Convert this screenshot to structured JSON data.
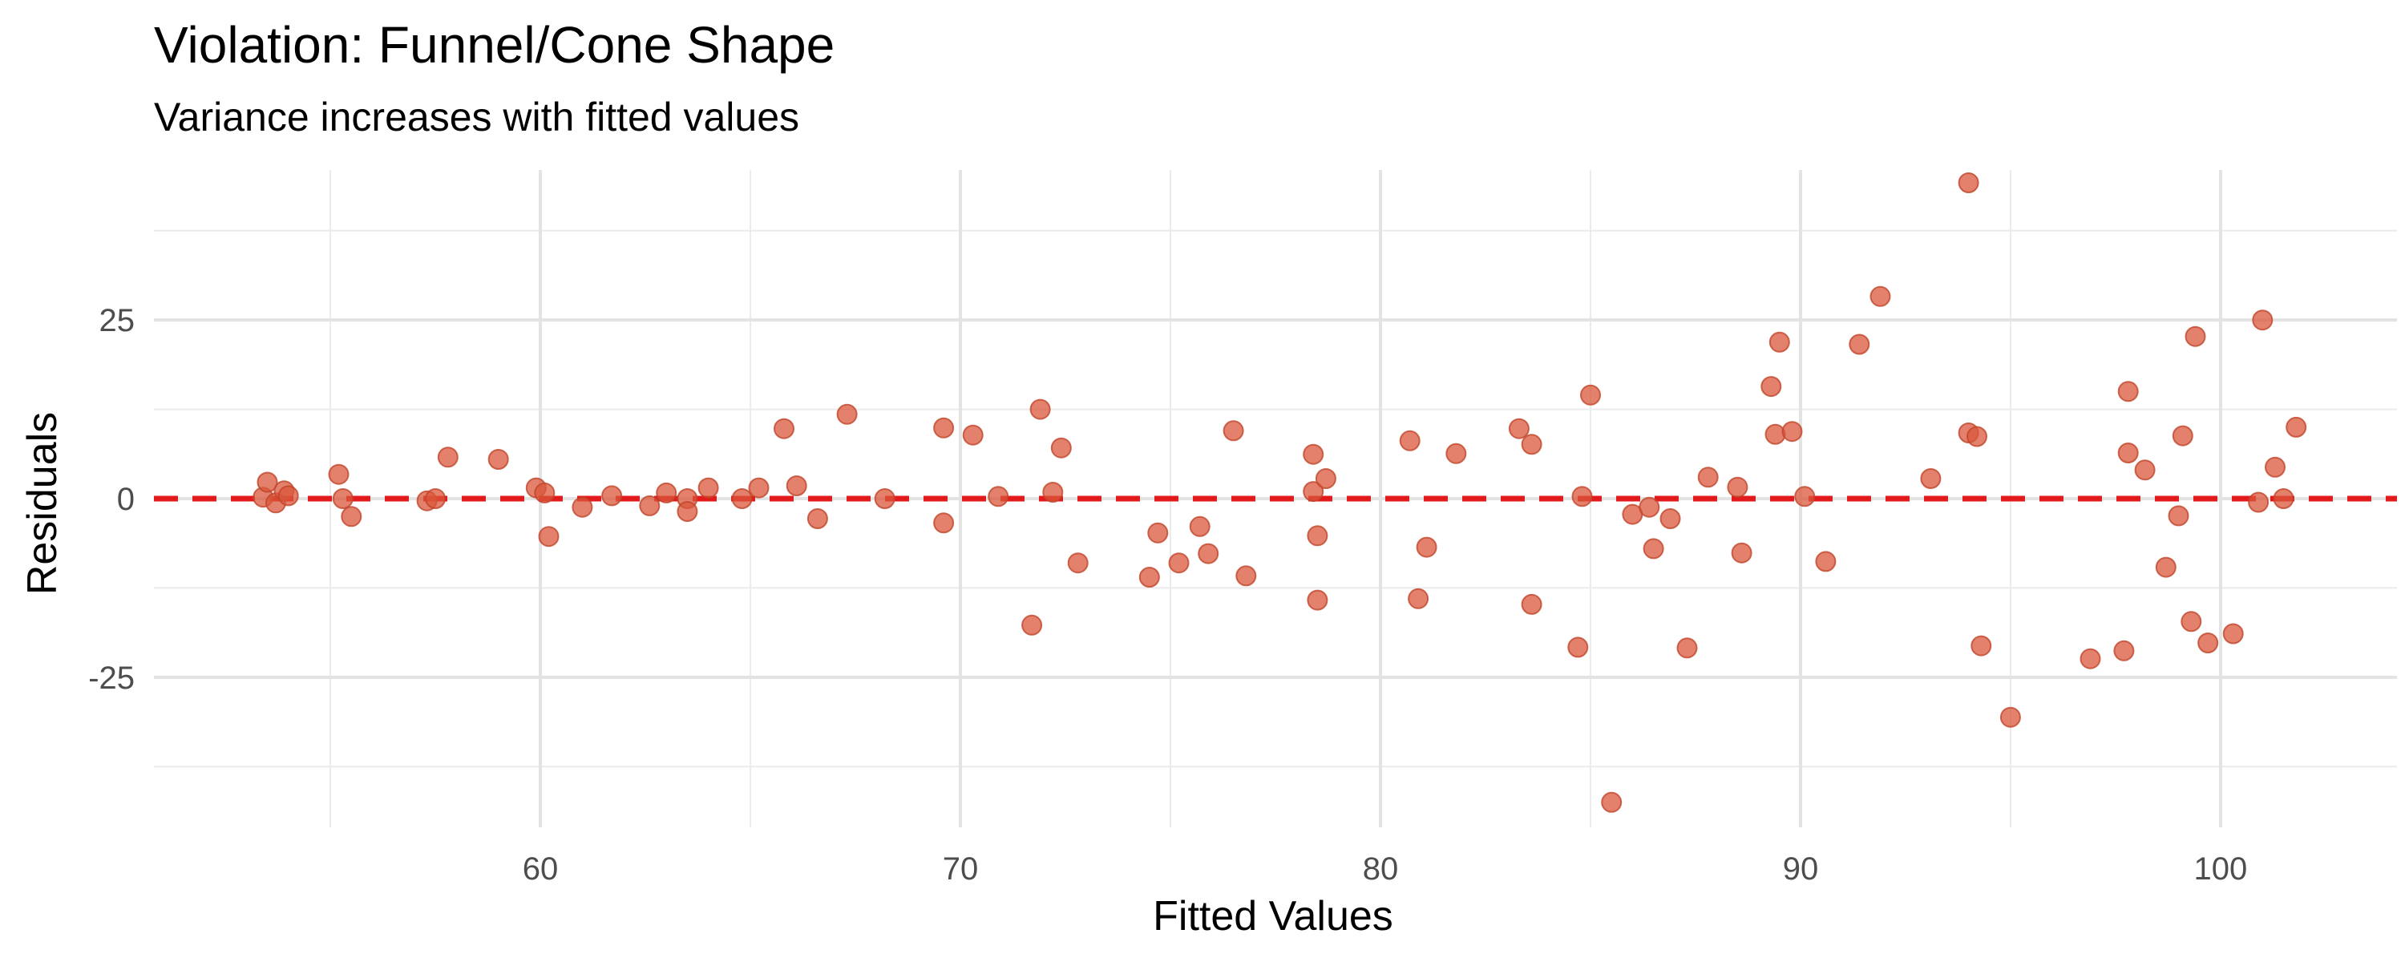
{
  "chart_data": {
    "type": "scatter",
    "title": "Violation: Funnel/Cone Shape",
    "subtitle": "Variance increases with fitted values",
    "xlabel": "Fitted Values",
    "ylabel": "Residuals",
    "xlim": [
      50.8,
      104.2
    ],
    "ylim": [
      -46,
      46
    ],
    "x_ticks": [
      60,
      70,
      80,
      90,
      100
    ],
    "x_minor_ticks": [
      55,
      65,
      75,
      85,
      95
    ],
    "y_ticks": [
      -25,
      0,
      25
    ],
    "y_minor_ticks": [
      -37.5,
      -12.5,
      12.5,
      37.5
    ],
    "grid": true,
    "reference_line": {
      "y": 0,
      "style": "dashed",
      "color": "#e31a1c"
    },
    "point_color": "#d9573b",
    "points": [
      {
        "x": 53.4,
        "y": 0.2
      },
      {
        "x": 53.5,
        "y": 2.3
      },
      {
        "x": 53.7,
        "y": -0.6
      },
      {
        "x": 53.9,
        "y": 1.1
      },
      {
        "x": 54.0,
        "y": 0.4
      },
      {
        "x": 55.2,
        "y": 3.4
      },
      {
        "x": 55.3,
        "y": 0.0
      },
      {
        "x": 55.5,
        "y": -2.5
      },
      {
        "x": 57.3,
        "y": -0.3
      },
      {
        "x": 57.5,
        "y": 0.0
      },
      {
        "x": 57.8,
        "y": 5.8
      },
      {
        "x": 59.0,
        "y": 5.5
      },
      {
        "x": 59.9,
        "y": 1.5
      },
      {
        "x": 60.1,
        "y": 0.8
      },
      {
        "x": 60.2,
        "y": -5.3
      },
      {
        "x": 61.0,
        "y": -1.2
      },
      {
        "x": 61.7,
        "y": 0.4
      },
      {
        "x": 62.6,
        "y": -1.0
      },
      {
        "x": 63.0,
        "y": 0.8
      },
      {
        "x": 63.5,
        "y": 0.0
      },
      {
        "x": 63.5,
        "y": -1.8
      },
      {
        "x": 64.0,
        "y": 1.5
      },
      {
        "x": 64.8,
        "y": 0.0
      },
      {
        "x": 65.2,
        "y": 1.5
      },
      {
        "x": 65.8,
        "y": 9.8
      },
      {
        "x": 66.1,
        "y": 1.8
      },
      {
        "x": 66.6,
        "y": -2.8
      },
      {
        "x": 67.3,
        "y": 11.8
      },
      {
        "x": 68.2,
        "y": 0.0
      },
      {
        "x": 69.6,
        "y": 9.9
      },
      {
        "x": 69.6,
        "y": -3.4
      },
      {
        "x": 70.3,
        "y": 8.9
      },
      {
        "x": 70.9,
        "y": 0.3
      },
      {
        "x": 71.7,
        "y": -17.7
      },
      {
        "x": 71.9,
        "y": 12.5
      },
      {
        "x": 72.2,
        "y": 0.9
      },
      {
        "x": 72.4,
        "y": 7.1
      },
      {
        "x": 72.8,
        "y": -9.0
      },
      {
        "x": 74.5,
        "y": -11.0
      },
      {
        "x": 74.7,
        "y": -4.8
      },
      {
        "x": 75.2,
        "y": -9.0
      },
      {
        "x": 75.7,
        "y": -3.9
      },
      {
        "x": 75.9,
        "y": -7.7
      },
      {
        "x": 76.5,
        "y": 9.5
      },
      {
        "x": 76.8,
        "y": -10.8
      },
      {
        "x": 78.4,
        "y": 6.2
      },
      {
        "x": 78.4,
        "y": 1.0
      },
      {
        "x": 78.5,
        "y": -5.2
      },
      {
        "x": 78.5,
        "y": -14.2
      },
      {
        "x": 78.7,
        "y": 2.8
      },
      {
        "x": 80.7,
        "y": 8.1
      },
      {
        "x": 80.9,
        "y": -14.0
      },
      {
        "x": 81.1,
        "y": -6.8
      },
      {
        "x": 81.8,
        "y": 6.3
      },
      {
        "x": 83.3,
        "y": 9.8
      },
      {
        "x": 83.6,
        "y": 7.6
      },
      {
        "x": 83.6,
        "y": -14.8
      },
      {
        "x": 84.7,
        "y": -20.8
      },
      {
        "x": 84.8,
        "y": 0.3
      },
      {
        "x": 85.0,
        "y": 14.5
      },
      {
        "x": 85.5,
        "y": -42.5
      },
      {
        "x": 86.0,
        "y": -2.2
      },
      {
        "x": 86.4,
        "y": -1.2
      },
      {
        "x": 86.5,
        "y": -7.0
      },
      {
        "x": 86.9,
        "y": -2.8
      },
      {
        "x": 87.3,
        "y": -20.9
      },
      {
        "x": 87.8,
        "y": 3.0
      },
      {
        "x": 88.5,
        "y": 1.6
      },
      {
        "x": 88.6,
        "y": -7.6
      },
      {
        "x": 89.3,
        "y": 15.7
      },
      {
        "x": 89.4,
        "y": 9.0
      },
      {
        "x": 89.5,
        "y": 21.9
      },
      {
        "x": 89.8,
        "y": 9.4
      },
      {
        "x": 90.1,
        "y": 0.3
      },
      {
        "x": 90.6,
        "y": -8.8
      },
      {
        "x": 91.4,
        "y": 21.6
      },
      {
        "x": 91.9,
        "y": 28.3
      },
      {
        "x": 93.1,
        "y": 2.8
      },
      {
        "x": 94.0,
        "y": 44.2
      },
      {
        "x": 94.0,
        "y": 9.2
      },
      {
        "x": 94.2,
        "y": 8.7
      },
      {
        "x": 94.3,
        "y": -20.6
      },
      {
        "x": 95.0,
        "y": -30.6
      },
      {
        "x": 96.9,
        "y": -22.4
      },
      {
        "x": 97.7,
        "y": -21.3
      },
      {
        "x": 97.8,
        "y": 6.4
      },
      {
        "x": 97.8,
        "y": 15.0
      },
      {
        "x": 98.2,
        "y": 4.0
      },
      {
        "x": 98.7,
        "y": -9.6
      },
      {
        "x": 99.0,
        "y": -2.4
      },
      {
        "x": 99.1,
        "y": 8.8
      },
      {
        "x": 99.3,
        "y": -17.2
      },
      {
        "x": 99.4,
        "y": 22.7
      },
      {
        "x": 99.7,
        "y": -20.2
      },
      {
        "x": 100.3,
        "y": -18.9
      },
      {
        "x": 100.9,
        "y": -0.5
      },
      {
        "x": 101.0,
        "y": 25.0
      },
      {
        "x": 101.3,
        "y": 4.4
      },
      {
        "x": 101.5,
        "y": 0.0
      },
      {
        "x": 101.8,
        "y": 10.0
      }
    ]
  }
}
